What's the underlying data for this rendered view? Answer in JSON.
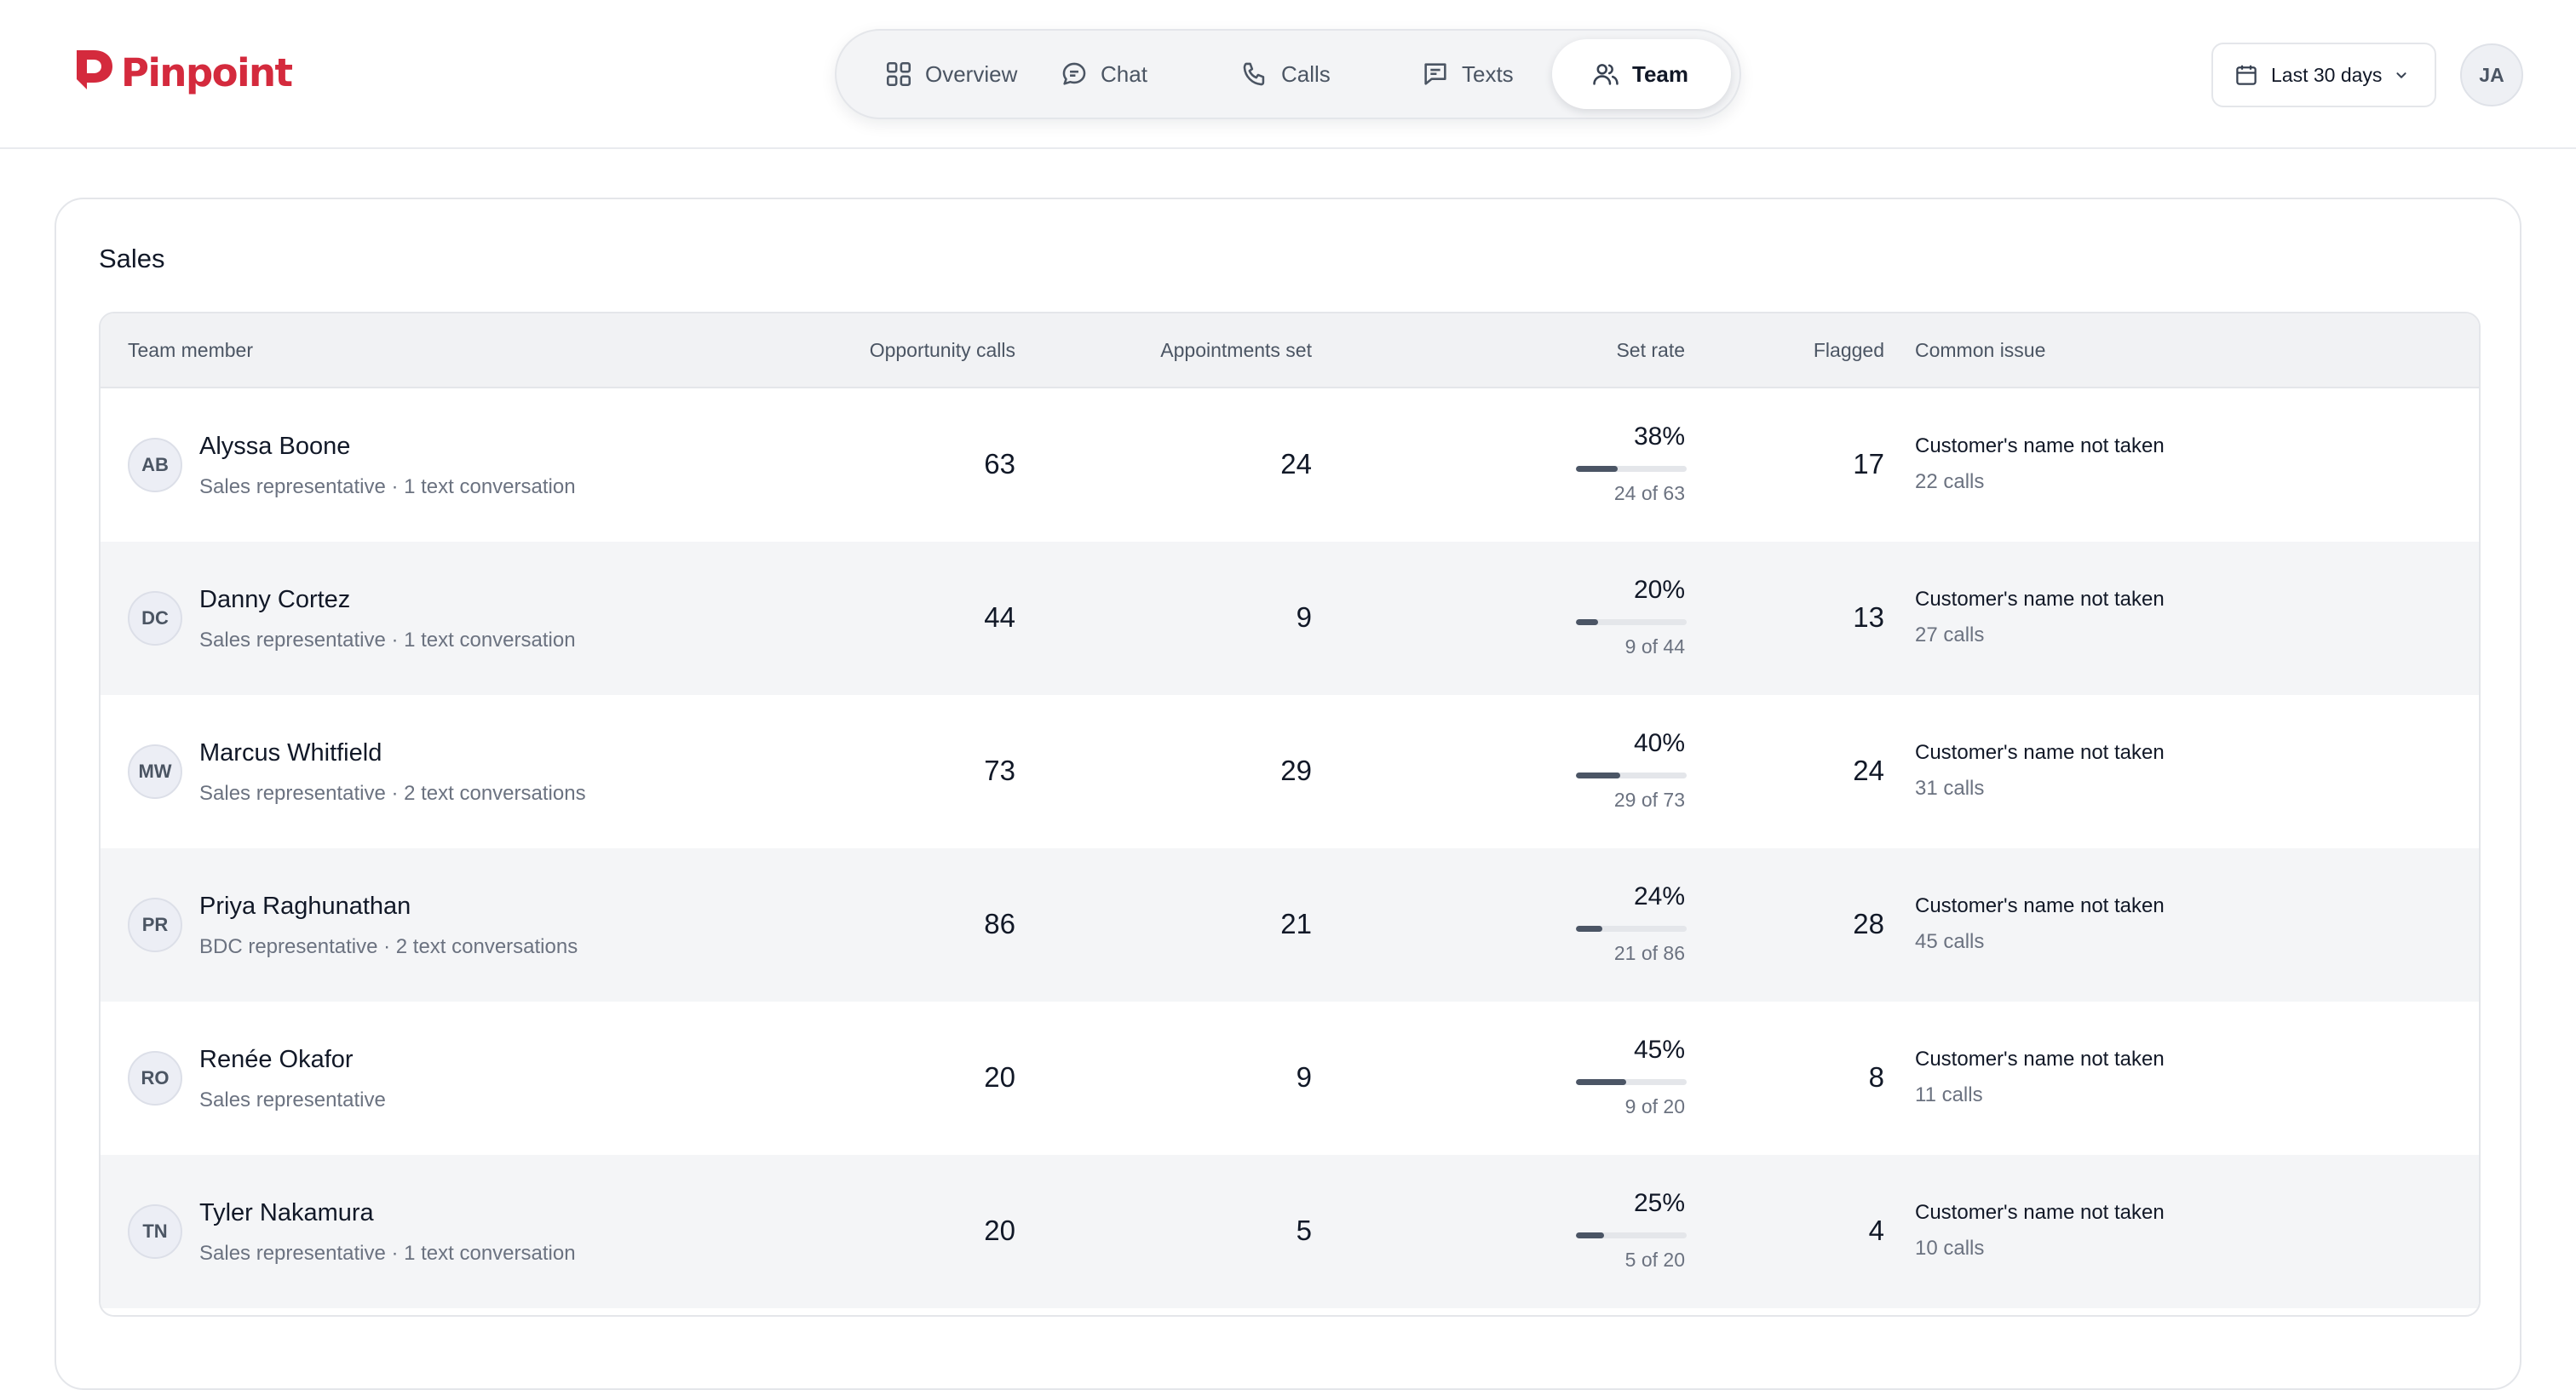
{
  "brand": {
    "name": "Pinpoint",
    "color": "#d42a3d"
  },
  "nav": {
    "tabs": [
      {
        "label": "Overview",
        "icon": "grid-icon",
        "active": false
      },
      {
        "label": "Chat",
        "icon": "chat-bubble-icon",
        "active": false
      },
      {
        "label": "Calls",
        "icon": "phone-icon",
        "active": false
      },
      {
        "label": "Texts",
        "icon": "message-square-icon",
        "active": false
      },
      {
        "label": "Team",
        "icon": "users-icon",
        "active": true
      }
    ]
  },
  "date_range": {
    "label": "Last 30 days",
    "icon": "calendar-icon"
  },
  "user": {
    "initials": "JA"
  },
  "section": {
    "title": "Sales",
    "columns": {
      "member": "Team member",
      "opportunity_calls": "Opportunity calls",
      "appointments_set": "Appointments set",
      "set_rate": "Set rate",
      "flagged": "Flagged",
      "common_issue": "Common issue"
    },
    "rows": [
      {
        "initials": "AB",
        "name": "Alyssa Boone",
        "subtitle": "Sales representative · 1 text conversation",
        "opportunity_calls": "63",
        "appointments_set": "24",
        "set_rate": "38%",
        "rate": 0.38,
        "ratio": "24 of 63",
        "flagged": "17",
        "issue": "Customer's name not taken",
        "issue_calls": "22 calls"
      },
      {
        "initials": "DC",
        "name": "Danny Cortez",
        "subtitle": "Sales representative · 1 text conversation",
        "opportunity_calls": "44",
        "appointments_set": "9",
        "set_rate": "20%",
        "rate": 0.2,
        "ratio": "9 of 44",
        "flagged": "13",
        "issue": "Customer's name not taken",
        "issue_calls": "27 calls"
      },
      {
        "initials": "MW",
        "name": "Marcus Whitfield",
        "subtitle": "Sales representative · 2 text conversations",
        "opportunity_calls": "73",
        "appointments_set": "29",
        "set_rate": "40%",
        "rate": 0.4,
        "ratio": "29 of 73",
        "flagged": "24",
        "issue": "Customer's name not taken",
        "issue_calls": "31 calls"
      },
      {
        "initials": "PR",
        "name": "Priya Raghunathan",
        "subtitle": "BDC representative · 2 text conversations",
        "opportunity_calls": "86",
        "appointments_set": "21",
        "set_rate": "24%",
        "rate": 0.24,
        "ratio": "21 of 86",
        "flagged": "28",
        "issue": "Customer's name not taken",
        "issue_calls": "45 calls"
      },
      {
        "initials": "RO",
        "name": "Renée Okafor",
        "subtitle": "Sales representative",
        "opportunity_calls": "20",
        "appointments_set": "9",
        "set_rate": "45%",
        "rate": 0.45,
        "ratio": "9 of 20",
        "flagged": "8",
        "issue": "Customer's name not taken",
        "issue_calls": "11 calls"
      },
      {
        "initials": "TN",
        "name": "Tyler Nakamura",
        "subtitle": "Sales representative · 1 text conversation",
        "opportunity_calls": "20",
        "appointments_set": "5",
        "set_rate": "25%",
        "rate": 0.25,
        "ratio": "5 of 20",
        "flagged": "4",
        "issue": "Customer's name not taken",
        "issue_calls": "10 calls"
      }
    ]
  }
}
